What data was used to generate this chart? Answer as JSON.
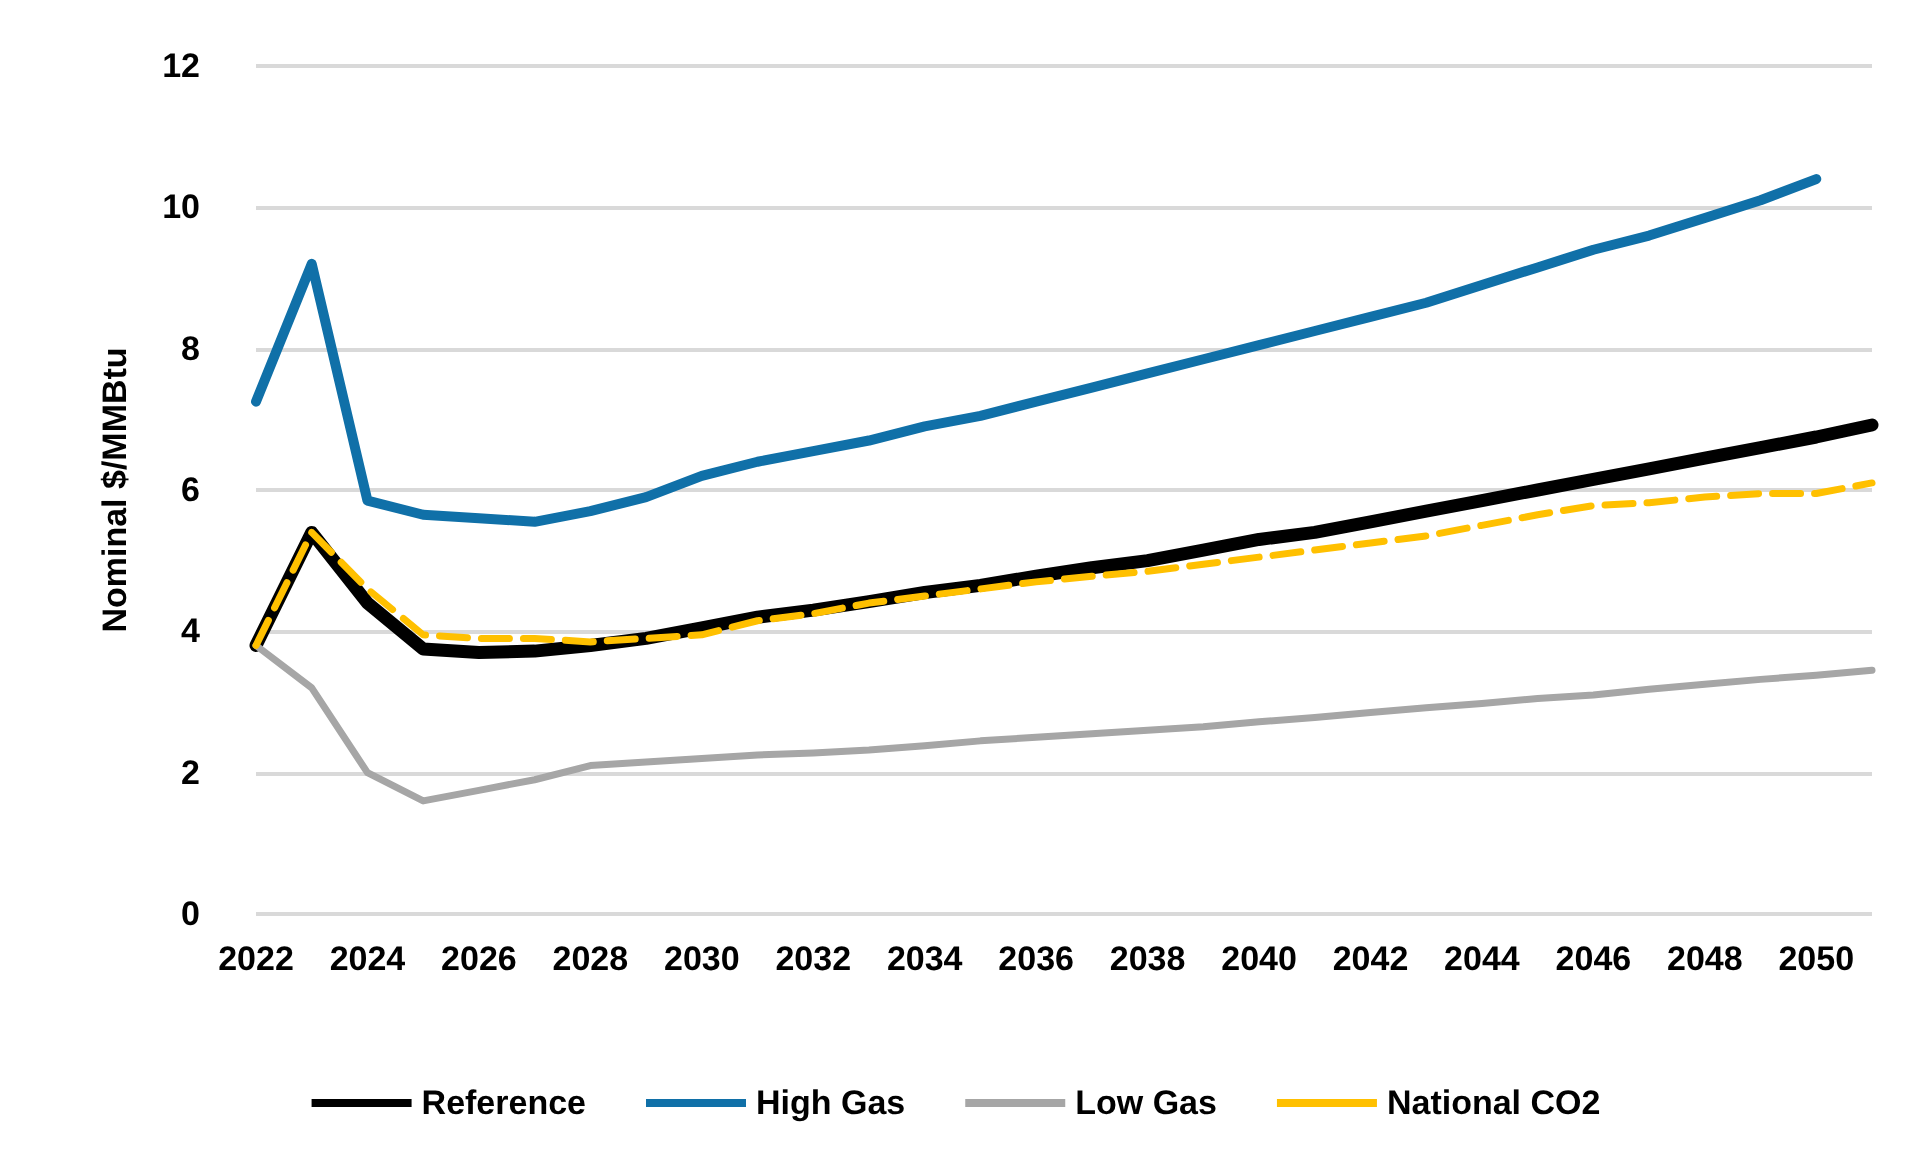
{
  "chart_data": {
    "type": "line",
    "ylabel": "Nominal $/MMBtu",
    "categories": [
      "2022",
      null,
      "2024",
      null,
      "2026",
      null,
      "2028",
      null,
      "2030",
      null,
      "2032",
      null,
      "2034",
      null,
      "2036",
      null,
      "2038",
      null,
      "2040",
      null,
      "2042",
      null,
      "2044",
      null,
      "2046",
      null,
      "2048",
      null,
      "2050",
      null
    ],
    "ylim": [
      0,
      12
    ],
    "yticks": [
      0,
      2,
      4,
      6,
      8,
      10,
      12
    ],
    "grid": "y",
    "legend": "bottom",
    "marker": "none",
    "series": [
      {
        "name": "Reference",
        "color": "#000000",
        "line_style": "solid",
        "values": [
          3.8,
          5.4,
          4.4,
          3.75,
          3.7,
          3.72,
          3.8,
          3.9,
          4.05,
          4.2,
          4.3,
          4.42,
          4.55,
          4.65,
          4.78,
          4.9,
          5.0,
          5.15,
          5.3,
          5.4,
          5.55,
          5.7,
          5.85,
          6.0,
          6.15,
          6.3,
          6.45,
          6.6,
          6.75,
          6.92
        ]
      },
      {
        "name": "High Gas",
        "color": "#1070a8",
        "line_style": "solid",
        "values": [
          7.25,
          9.2,
          5.85,
          5.65,
          5.6,
          5.55,
          5.7,
          5.9,
          6.2,
          6.4,
          6.55,
          6.7,
          6.9,
          7.05,
          7.25,
          7.45,
          7.65,
          7.85,
          8.05,
          8.25,
          8.45,
          8.65,
          8.9,
          9.15,
          9.4,
          9.6,
          9.85,
          10.1,
          10.4,
          null
        ]
      },
      {
        "name": "Low Gas",
        "color": "#a6a6a6",
        "line_style": "solid",
        "values": [
          3.8,
          3.2,
          2.0,
          1.6,
          1.75,
          1.9,
          2.1,
          2.15,
          2.2,
          2.25,
          2.28,
          2.32,
          2.38,
          2.45,
          2.5,
          2.55,
          2.6,
          2.65,
          2.72,
          2.78,
          2.85,
          2.92,
          2.98,
          3.05,
          3.1,
          3.18,
          3.25,
          3.32,
          3.38,
          3.45
        ]
      },
      {
        "name": "National CO2",
        "color": "#ffc000",
        "line_style": "dashed",
        "values": [
          3.8,
          5.4,
          4.6,
          3.95,
          3.9,
          3.9,
          3.85,
          3.9,
          3.95,
          4.15,
          4.25,
          4.4,
          4.5,
          4.6,
          4.7,
          4.78,
          4.85,
          4.95,
          5.05,
          5.15,
          5.25,
          5.35,
          5.5,
          5.65,
          5.78,
          5.82,
          5.9,
          5.95,
          5.95,
          6.1
        ]
      }
    ]
  }
}
